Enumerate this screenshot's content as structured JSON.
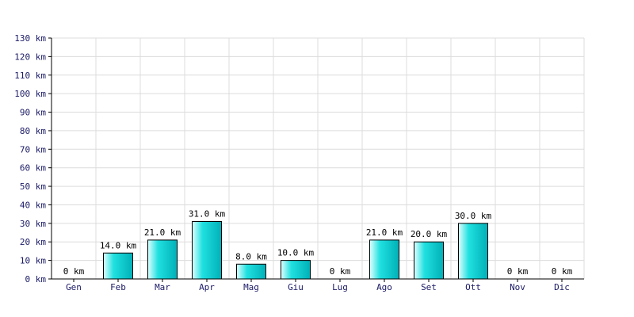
{
  "chart_data": {
    "type": "bar",
    "title": "",
    "xlabel": "",
    "ylabel": "",
    "unit": "km",
    "categories": [
      "Gen",
      "Feb",
      "Mar",
      "Apr",
      "Mag",
      "Giu",
      "Lug",
      "Ago",
      "Set",
      "Ott",
      "Nov",
      "Dic"
    ],
    "values": [
      0,
      14,
      21,
      31,
      8,
      10,
      0,
      21,
      20,
      30,
      0,
      0
    ],
    "data_labels": [
      "0 km",
      "14.0 km",
      "21.0 km",
      "31.0 km",
      "8.0 km",
      "10.0 km",
      "0 km",
      "21.0 km",
      "20.0 km",
      "30.0 km",
      "0 km",
      "0 km"
    ],
    "y_ticks": [
      "0 km",
      "10 km",
      "20 km",
      "30 km",
      "40 km",
      "50 km",
      "60 km",
      "70 km",
      "80 km",
      "90 km",
      "100 km",
      "110 km",
      "120 km",
      "130 km"
    ],
    "ylim": [
      0,
      130
    ],
    "y_step": 10,
    "grid": true,
    "legend": "none",
    "colors": {
      "bar_light": "#e0ffff",
      "bar_dark": "#00b0b8",
      "bar_edge": "#000000",
      "grid": "#dcdcdc",
      "axis": "#000000",
      "tick_text": "#1a1a66"
    }
  }
}
